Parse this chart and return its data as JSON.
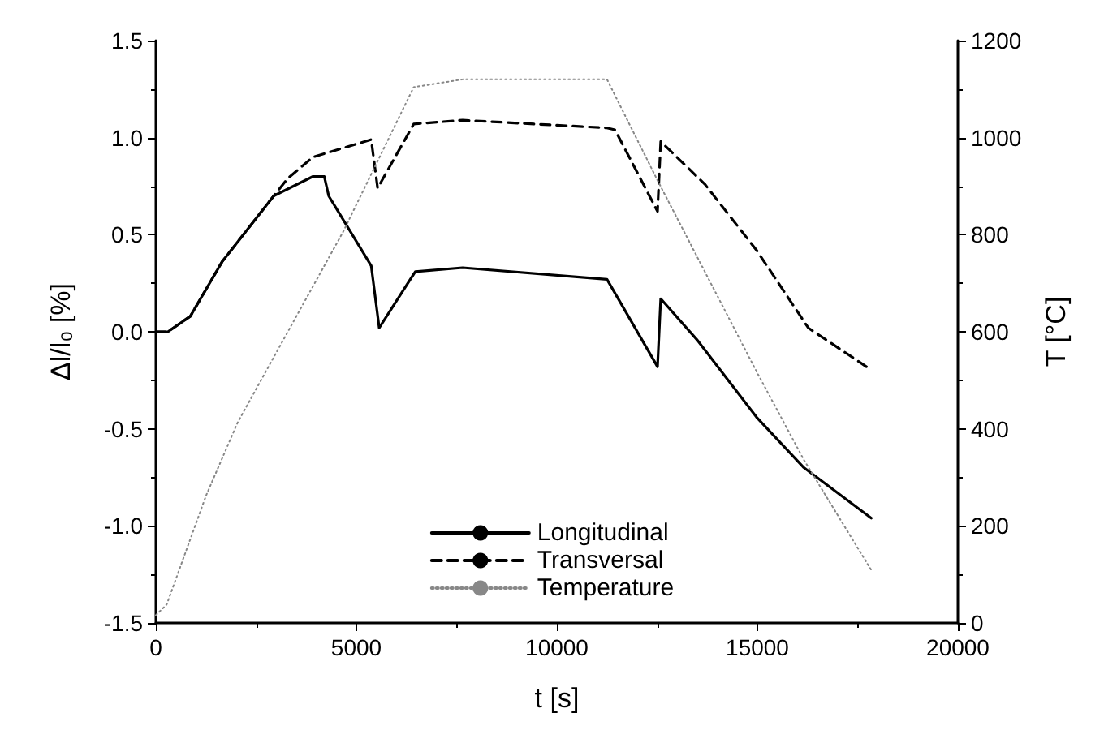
{
  "chart_data": {
    "type": "line",
    "xlabel": "t [s]",
    "ylabel": "Δl/l₀ [%]",
    "y2label": "T [°C]",
    "xlim": [
      0,
      20000
    ],
    "xticks": [
      0,
      5000,
      10000,
      15000,
      20000
    ],
    "ylim": [
      -1.5,
      1.5
    ],
    "yticks": [
      -1.5,
      {
        "value": -1,
        "label": "-1.0"
      },
      -0.5,
      {
        "value": 0,
        "label": "0.0"
      },
      0.5,
      {
        "value": 1,
        "label": "1.0"
      },
      1.5
    ],
    "y2lim": [
      0,
      1200
    ],
    "y2ticks": [
      0,
      200,
      400,
      600,
      800,
      1000,
      1200
    ],
    "grid": false,
    "legend": "bottom",
    "marker": "none",
    "series": [
      {
        "name": "Longitudinal",
        "color": "#000000",
        "line_style": "solid",
        "x": [
          0,
          300,
          860,
          1650,
          2940,
          3920,
          4200,
          4310,
          5370,
          5570,
          6470,
          7650,
          11250,
          12510,
          12590,
          13490,
          14980,
          16160,
          17840
        ],
        "values": [
          0,
          0,
          0.08,
          0.36,
          0.7,
          0.8,
          0.8,
          0.7,
          0.34,
          0.02,
          0.31,
          0.33,
          0.27,
          -0.18,
          0.17,
          -0.04,
          -0.44,
          -0.7,
          -0.96
        ]
      },
      {
        "name": "Transversal",
        "color": "#000000",
        "line_style": "dashed",
        "x": [
          0,
          300,
          860,
          1650,
          2940,
          3290,
          3920,
          5370,
          5530,
          6430,
          7650,
          11250,
          11450,
          12510,
          12590,
          13690,
          14980,
          16270,
          17720
        ],
        "values": [
          0,
          0,
          0.08,
          0.36,
          0.7,
          0.79,
          0.9,
          0.99,
          0.74,
          1.07,
          1.09,
          1.05,
          1.04,
          0.62,
          0.98,
          0.76,
          0.42,
          0.02,
          -0.18
        ]
      },
      {
        "name": "Temperature",
        "color": "#888888",
        "line_style": "dotted",
        "axis": "y2",
        "x": [
          0,
          270,
          1250,
          2040,
          4670,
          6430,
          7650,
          11250,
          12510,
          14980,
          16160,
          17840
        ],
        "values": [
          16,
          38,
          262,
          413,
          806,
          1104,
          1120,
          1120,
          912,
          518,
          336,
          109
        ]
      }
    ]
  }
}
